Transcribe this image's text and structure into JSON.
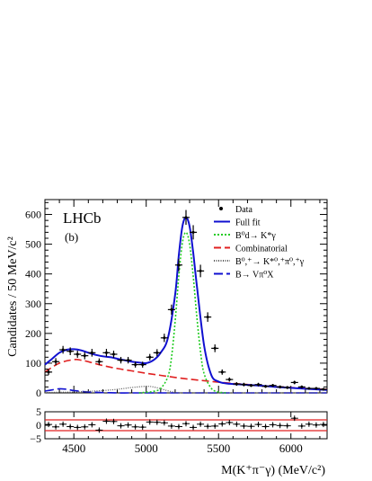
{
  "chart_data": [
    {
      "type": "line",
      "panel": "main",
      "experiment_label": "LHCb",
      "panel_label": "(b)",
      "ylabel": "Candidates / 50 MeV/c²",
      "xlim": [
        4300,
        6250
      ],
      "ylim": [
        0,
        650
      ],
      "x_ticks": [
        4500,
        5000,
        5500,
        6000
      ],
      "y_ticks": [
        0,
        100,
        200,
        300,
        400,
        500,
        600
      ],
      "legend_position": "top-right",
      "legend": [
        {
          "label": "Data",
          "style": "marker",
          "color": "#000000"
        },
        {
          "label": "Full fit",
          "style": "solid",
          "color": "#1010d0"
        },
        {
          "label": "B⁰d→ K*γ",
          "style": "dotted",
          "color": "#22cc22"
        },
        {
          "label": "Combinatorial",
          "style": "dashed",
          "color": "#e02020"
        },
        {
          "label": "B⁰,⁺→ K*⁰,⁺π⁰,⁺γ",
          "style": "dotted",
          "color": "#555555"
        },
        {
          "label": "B→ Vπ⁰X",
          "style": "longdash",
          "color": "#1010d0"
        }
      ],
      "series": [
        {
          "name": "Data",
          "kind": "points",
          "x": [
            4325,
            4375,
            4425,
            4475,
            4525,
            4575,
            4625,
            4675,
            4725,
            4775,
            4825,
            4875,
            4925,
            4975,
            5025,
            5075,
            5125,
            5175,
            5225,
            5275,
            5325,
            5375,
            5425,
            5475,
            5525,
            5575,
            5625,
            5675,
            5725,
            5775,
            5825,
            5875,
            5925,
            5975,
            6025,
            6075,
            6125,
            6175,
            6225
          ],
          "y": [
            70,
            105,
            145,
            140,
            130,
            125,
            135,
            105,
            135,
            130,
            110,
            110,
            95,
            95,
            120,
            135,
            185,
            280,
            430,
            590,
            540,
            410,
            255,
            150,
            70,
            45,
            30,
            28,
            25,
            28,
            22,
            25,
            20,
            18,
            35,
            20,
            15,
            15,
            12
          ],
          "yerr": [
            10,
            12,
            13,
            13,
            12,
            12,
            13,
            11,
            13,
            12,
            11,
            11,
            10,
            10,
            11,
            12,
            14,
            17,
            21,
            25,
            24,
            21,
            16,
            13,
            9,
            7,
            6,
            6,
            5,
            6,
            5,
            5,
            5,
            5,
            6,
            5,
            4,
            4,
            4
          ]
        },
        {
          "name": "Full fit",
          "kind": "curve",
          "x": [
            4300,
            4350,
            4400,
            4450,
            4500,
            4550,
            4600,
            4650,
            4700,
            4750,
            4800,
            4850,
            4900,
            4950,
            5000,
            5050,
            5100,
            5150,
            5200,
            5225,
            5250,
            5275,
            5300,
            5325,
            5350,
            5400,
            5450,
            5500,
            5550,
            5600,
            5700,
            5800,
            5900,
            6000,
            6100,
            6250
          ],
          "y": [
            95,
            115,
            135,
            145,
            147,
            143,
            135,
            128,
            123,
            120,
            115,
            110,
            105,
            102,
            100,
            110,
            135,
            185,
            330,
            460,
            560,
            590,
            560,
            470,
            360,
            160,
            60,
            38,
            32,
            30,
            27,
            24,
            20,
            17,
            14,
            10
          ]
        },
        {
          "name": "B⁰d→ K*γ",
          "kind": "curve",
          "x": [
            4950,
            5000,
            5050,
            5100,
            5150,
            5175,
            5200,
            5225,
            5250,
            5275,
            5300,
            5325,
            5350,
            5375,
            5400,
            5450,
            5500,
            5550
          ],
          "y": [
            0,
            2,
            5,
            15,
            55,
            120,
            240,
            390,
            505,
            540,
            500,
            390,
            255,
            140,
            65,
            15,
            3,
            0
          ]
        },
        {
          "name": "Combinatorial",
          "kind": "curve",
          "x": [
            4300,
            4400,
            4500,
            4550,
            4600,
            4700,
            4800,
            4900,
            5000,
            5100,
            5200,
            5300,
            5400,
            5500,
            5600,
            5700,
            5800,
            5900,
            6000,
            6100,
            6250
          ],
          "y": [
            70,
            100,
            112,
            110,
            105,
            92,
            82,
            74,
            66,
            59,
            52,
            46,
            41,
            36,
            32,
            28,
            24,
            21,
            18,
            15,
            12
          ]
        },
        {
          "name": "B⁰,⁺→ K*⁰,⁺π⁰,⁺γ",
          "kind": "curve",
          "x": [
            4300,
            4400,
            4500,
            4600,
            4700,
            4800,
            4900,
            5000,
            5050,
            5100,
            5150,
            5200,
            5300,
            6250
          ],
          "y": [
            1,
            2,
            3,
            5,
            8,
            12,
            18,
            22,
            20,
            14,
            7,
            2,
            0,
            0
          ]
        },
        {
          "name": "B→ Vπ⁰X",
          "kind": "curve",
          "x": [
            4300,
            4350,
            4400,
            4450,
            4500,
            4550,
            4600,
            4700,
            4800,
            4900,
            5000,
            5200,
            6250
          ],
          "y": [
            6,
            10,
            14,
            12,
            8,
            5,
            3,
            1,
            0,
            0,
            0,
            0,
            0
          ]
        }
      ]
    },
    {
      "type": "scatter",
      "panel": "pull",
      "xlabel": "M(K⁺π⁻γ) (MeV/c²)",
      "xlim": [
        4300,
        6250
      ],
      "ylim": [
        -5,
        5
      ],
      "x_ticks": [
        4500,
        5000,
        5500,
        6000
      ],
      "y_ticks": [
        -5,
        0,
        5
      ],
      "reference_lines": [
        {
          "y": 2,
          "color": "#e02020"
        },
        {
          "y": -2,
          "color": "#e02020"
        }
      ],
      "x": [
        4325,
        4375,
        4425,
        4475,
        4525,
        4575,
        4625,
        4675,
        4725,
        4775,
        4825,
        4875,
        4925,
        4975,
        5025,
        5075,
        5125,
        5175,
        5225,
        5275,
        5325,
        5375,
        5425,
        5475,
        5525,
        5575,
        5625,
        5675,
        5725,
        5775,
        5825,
        5875,
        5925,
        5975,
        6025,
        6075,
        6125,
        6175,
        6225
      ],
      "y": [
        0.3,
        -0.6,
        0.4,
        -0.5,
        -0.8,
        -0.6,
        0.2,
        -1.8,
        1.5,
        1.4,
        -0.2,
        0.1,
        -0.6,
        -0.7,
        1.2,
        1.1,
        0.9,
        -0.3,
        -0.5,
        0.6,
        -0.8,
        0.4,
        -0.4,
        -0.3,
        0.5,
        1.0,
        0.4,
        -0.3,
        -0.4,
        0.3,
        -0.5,
        0.2,
        -0.1,
        -0.2,
        2.6,
        -0.3,
        0.4,
        0.1,
        0.3
      ],
      "yerr": 1
    }
  ]
}
